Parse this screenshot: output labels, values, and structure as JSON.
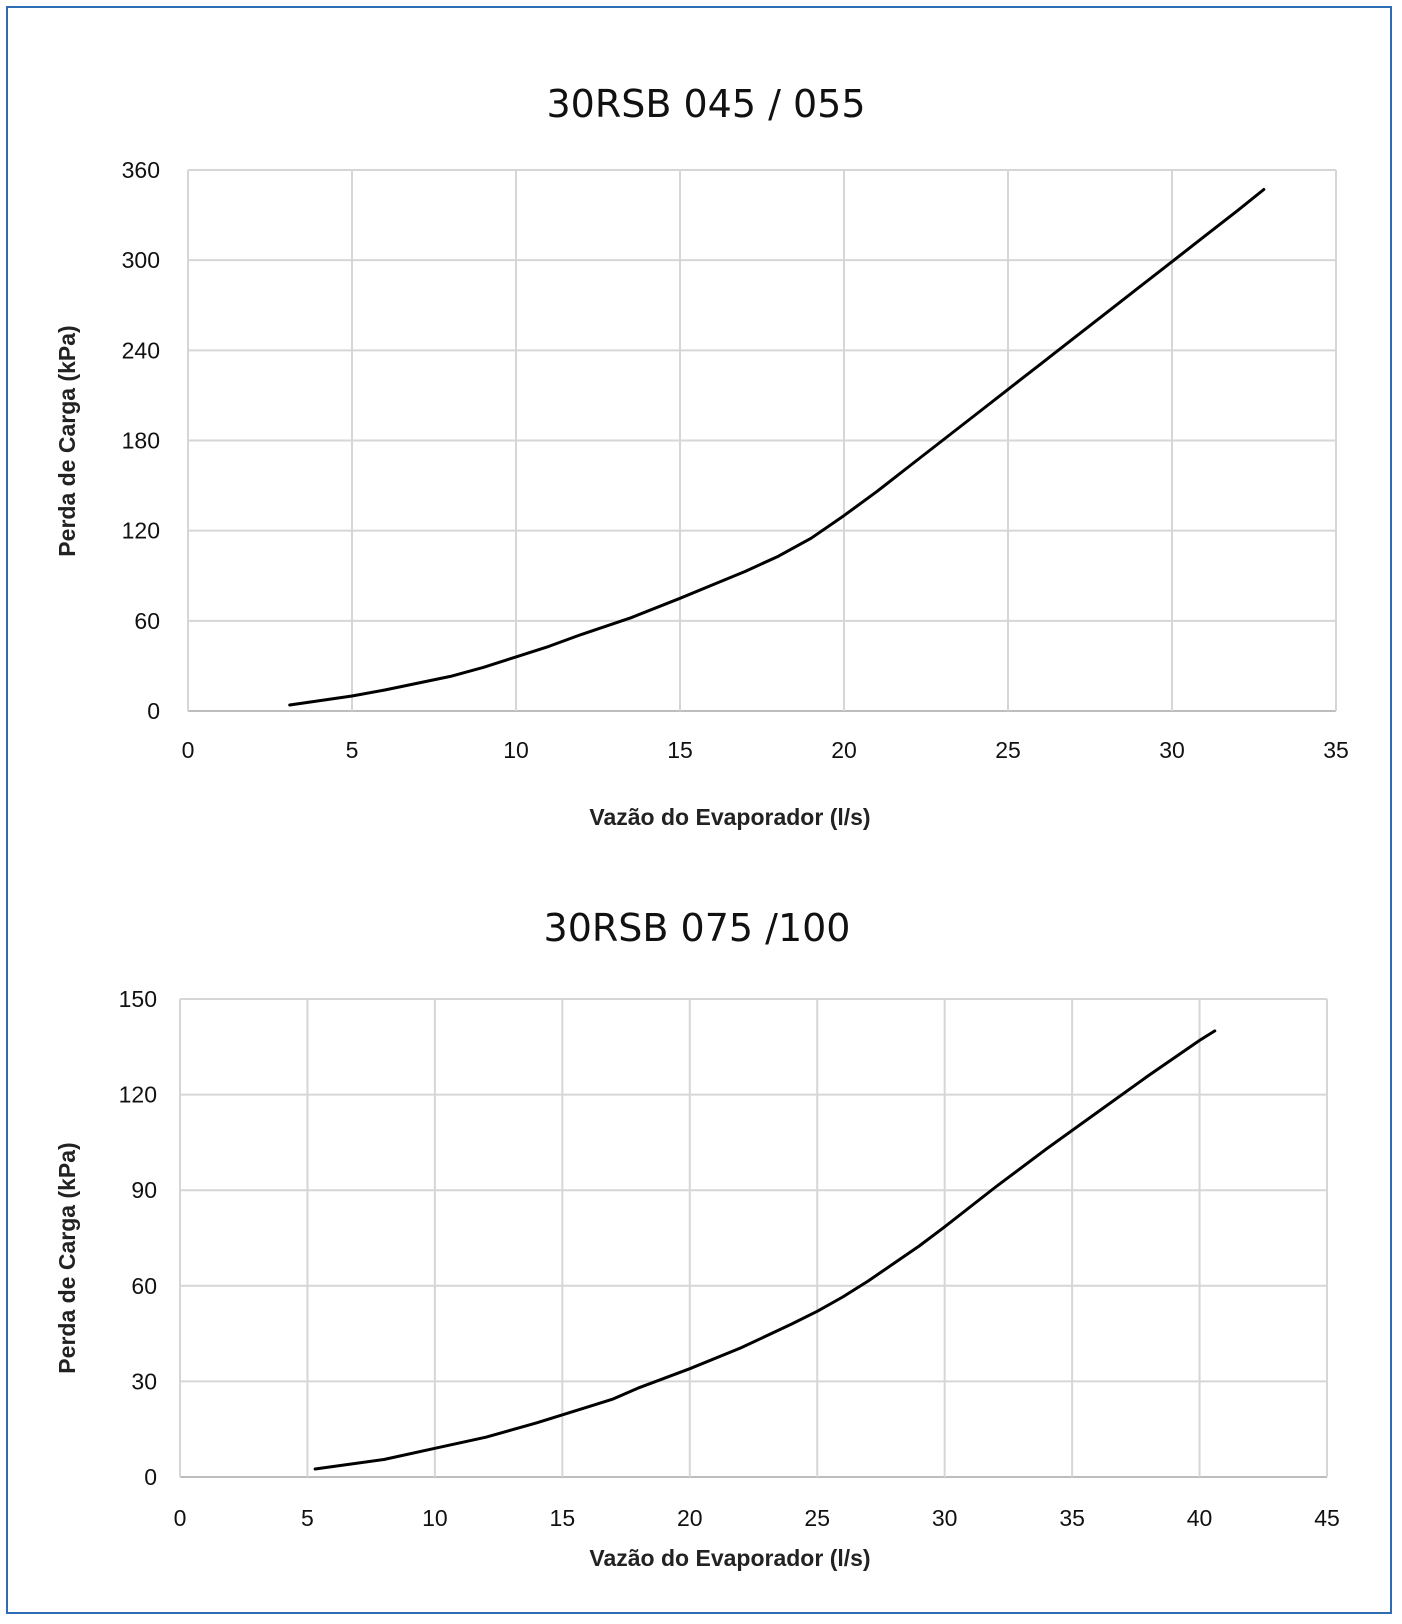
{
  "chart_data": [
    {
      "type": "line",
      "title": "30RSB 045 / 055",
      "xlabel": "Vazão do Evaporador (l/s)",
      "ylabel": "Perda de Carga (kPa)",
      "xlim": [
        0,
        35
      ],
      "ylim": [
        0,
        360
      ],
      "x_ticks": [
        "0",
        "5",
        "10",
        "15",
        "20",
        "25",
        "30",
        "35"
      ],
      "y_ticks": [
        "0",
        "60",
        "120",
        "180",
        "240",
        "300",
        "360"
      ],
      "grid": true,
      "legend": "none",
      "line_color": "#000000",
      "series": [
        {
          "x": [
            3.1,
            5,
            6,
            8,
            9,
            10,
            11,
            12,
            13.5,
            15,
            16,
            17,
            18,
            19,
            20,
            21,
            22,
            23,
            24,
            25,
            26,
            27,
            28,
            29,
            30,
            31,
            32,
            32.8
          ],
          "values": [
            4,
            10,
            14,
            23,
            29,
            36,
            43,
            51,
            62,
            75,
            84,
            93,
            103,
            115,
            130,
            146,
            163,
            180,
            197,
            214,
            231,
            248,
            265,
            282,
            299,
            316,
            333,
            347
          ]
        }
      ]
    },
    {
      "type": "line",
      "title": "30RSB 075 /100",
      "xlabel": "Vazão do Evaporador (l/s)",
      "ylabel": "Perda de Carga (kPa)",
      "xlim": [
        0,
        45
      ],
      "ylim": [
        0,
        150
      ],
      "x_ticks": [
        "0",
        "5",
        "10",
        "15",
        "20",
        "25",
        "30",
        "35",
        "40",
        "45"
      ],
      "y_ticks": [
        "0",
        "30",
        "60",
        "90",
        "120",
        "150"
      ],
      "grid": true,
      "legend": "none",
      "line_color": "#000000",
      "series": [
        {
          "x": [
            5.3,
            8,
            10,
            12,
            14,
            16,
            17,
            18,
            20,
            22,
            24,
            25,
            26,
            27,
            28,
            29,
            30,
            32,
            34,
            36,
            38,
            40,
            40.6
          ],
          "values": [
            2.5,
            5.5,
            9,
            12.5,
            17,
            22,
            24.5,
            28,
            34,
            40.5,
            48,
            52,
            56.5,
            61.5,
            67,
            72.5,
            78.5,
            91,
            103,
            114.5,
            126,
            137,
            140
          ]
        }
      ]
    }
  ]
}
